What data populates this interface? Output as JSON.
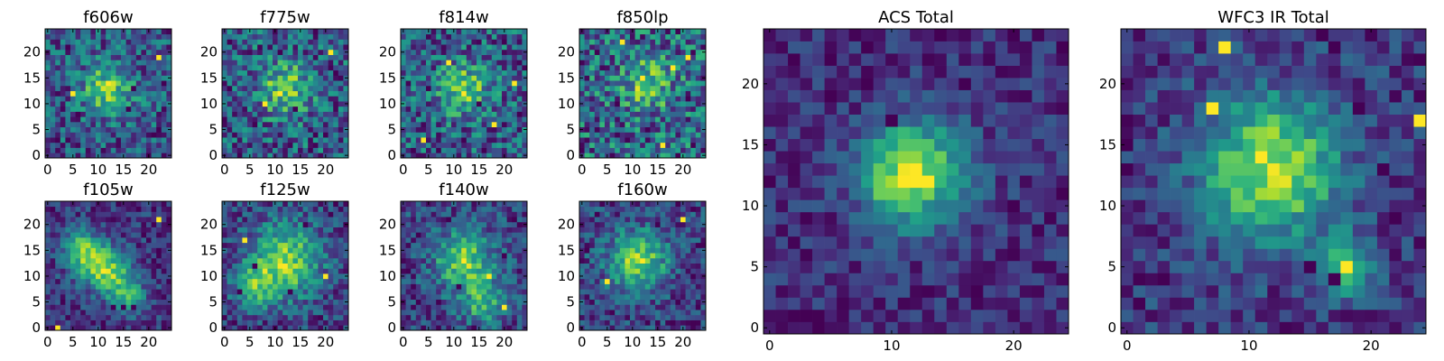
{
  "chart_data": [
    {
      "type": "heatmap",
      "title": "f606w",
      "grid_size": 25,
      "xticks": [
        0,
        5,
        10,
        15,
        20
      ],
      "yticks": [
        0,
        5,
        10,
        15,
        20
      ],
      "xlim": [
        0,
        24
      ],
      "ylim": [
        0,
        24
      ],
      "colormap": "viridis",
      "seed": 11,
      "noise": 0.85,
      "blobs": [
        [
          12,
          13,
          3.5,
          0.8
        ]
      ],
      "minima": [
        [
          4,
          21
        ],
        [
          17,
          13
        ],
        [
          22,
          5
        ],
        [
          2,
          3
        ],
        [
          20,
          0
        ],
        [
          16,
          9
        ],
        [
          6,
          8
        ],
        [
          23,
          14
        ]
      ],
      "maxima": [
        [
          22,
          19
        ],
        [
          5,
          12
        ]
      ]
    },
    {
      "type": "heatmap",
      "title": "f775w",
      "grid_size": 25,
      "xticks": [
        0,
        5,
        10,
        15,
        20
      ],
      "yticks": [
        0,
        5,
        10,
        15,
        20
      ],
      "xlim": [
        0,
        24
      ],
      "ylim": [
        0,
        24
      ],
      "colormap": "viridis",
      "seed": 23,
      "noise": 0.85,
      "blobs": [
        [
          12,
          13,
          3.5,
          0.7
        ]
      ],
      "minima": [
        [
          1,
          22
        ],
        [
          11,
          20
        ],
        [
          14,
          9
        ],
        [
          20,
          4
        ],
        [
          22,
          16
        ],
        [
          6,
          6
        ],
        [
          3,
          0
        ],
        [
          17,
          1
        ]
      ],
      "maxima": [
        [
          21,
          20
        ],
        [
          8,
          10
        ]
      ]
    },
    {
      "type": "heatmap",
      "title": "f814w",
      "grid_size": 25,
      "xticks": [
        0,
        5,
        10,
        15,
        20
      ],
      "yticks": [
        0,
        5,
        10,
        15,
        20
      ],
      "xlim": [
        0,
        24
      ],
      "ylim": [
        0,
        24
      ],
      "colormap": "viridis",
      "seed": 37,
      "noise": 0.9,
      "blobs": [
        [
          12,
          13,
          3.5,
          0.7
        ]
      ],
      "minima": [
        [
          2,
          1
        ],
        [
          9,
          18
        ],
        [
          15,
          10
        ],
        [
          20,
          22
        ],
        [
          23,
          8
        ],
        [
          5,
          13
        ],
        [
          12,
          3
        ]
      ],
      "maxima": [
        [
          9,
          18
        ],
        [
          18,
          6
        ],
        [
          22,
          14
        ],
        [
          4,
          3
        ]
      ]
    },
    {
      "type": "heatmap",
      "title": "f850lp",
      "grid_size": 25,
      "xticks": [
        0,
        5,
        10,
        15,
        20
      ],
      "yticks": [
        0,
        5,
        10,
        15,
        20
      ],
      "xlim": [
        0,
        24
      ],
      "ylim": [
        0,
        24
      ],
      "colormap": "viridis",
      "seed": 41,
      "noise": 0.9,
      "blobs": [
        [
          13,
          14,
          3.2,
          0.6
        ]
      ],
      "minima": [
        [
          3,
          20
        ],
        [
          13,
          5
        ],
        [
          18,
          17
        ],
        [
          22,
          2
        ],
        [
          7,
          10
        ],
        [
          21,
          11
        ],
        [
          0,
          1
        ]
      ],
      "maxima": [
        [
          18,
          17
        ],
        [
          8,
          22
        ],
        [
          21,
          19
        ],
        [
          16,
          2
        ]
      ]
    },
    {
      "type": "heatmap",
      "title": "f105w",
      "grid_size": 25,
      "xticks": [
        0,
        5,
        10,
        15,
        20
      ],
      "yticks": [
        0,
        5,
        10,
        15,
        20
      ],
      "xlim": [
        0,
        24
      ],
      "ylim": [
        0,
        24
      ],
      "colormap": "viridis",
      "seed": 53,
      "noise": 0.6,
      "blobs": [
        [
          9,
          13,
          3,
          0.9
        ],
        [
          13,
          10,
          3,
          0.8
        ],
        [
          6,
          16,
          2.5,
          0.6
        ],
        [
          16,
          6,
          2.5,
          0.6
        ]
      ],
      "minima": [
        [
          17,
          4
        ],
        [
          13,
          4
        ],
        [
          15,
          4
        ],
        [
          18,
          23
        ],
        [
          1,
          23
        ],
        [
          22,
          15
        ],
        [
          3,
          5
        ],
        [
          19,
          18
        ]
      ],
      "maxima": [
        [
          2,
          0
        ],
        [
          22,
          21
        ]
      ]
    },
    {
      "type": "heatmap",
      "title": "f125w",
      "grid_size": 25,
      "xticks": [
        0,
        5,
        10,
        15,
        20
      ],
      "yticks": [
        0,
        5,
        10,
        15,
        20
      ],
      "xlim": [
        0,
        24
      ],
      "ylim": [
        0,
        24
      ],
      "colormap": "viridis",
      "seed": 67,
      "noise": 0.6,
      "blobs": [
        [
          12,
          13,
          5,
          0.9
        ],
        [
          6,
          8,
          3,
          0.5
        ]
      ],
      "minima": [
        [
          3,
          7
        ],
        [
          13,
          7
        ],
        [
          16,
          20
        ],
        [
          19,
          2
        ],
        [
          6,
          12
        ],
        [
          21,
          22
        ],
        [
          10,
          0
        ]
      ],
      "maxima": [
        [
          4,
          17
        ],
        [
          20,
          10
        ]
      ]
    },
    {
      "type": "heatmap",
      "title": "f140w",
      "grid_size": 25,
      "xticks": [
        0,
        5,
        10,
        15,
        20
      ],
      "yticks": [
        0,
        5,
        10,
        15,
        20
      ],
      "xlim": [
        0,
        24
      ],
      "ylim": [
        0,
        24
      ],
      "colormap": "viridis",
      "seed": 79,
      "noise": 0.6,
      "blobs": [
        [
          12,
          13,
          4,
          0.8
        ],
        [
          16,
          5,
          3,
          0.6
        ]
      ],
      "minima": [
        [
          3,
          18
        ],
        [
          14,
          0
        ],
        [
          7,
          5
        ],
        [
          11,
          8
        ],
        [
          20,
          14
        ],
        [
          22,
          21
        ],
        [
          1,
          11
        ],
        [
          9,
          21
        ]
      ],
      "maxima": [
        [
          17,
          10
        ],
        [
          20,
          4
        ]
      ]
    },
    {
      "type": "heatmap",
      "title": "f160w",
      "grid_size": 25,
      "xticks": [
        0,
        5,
        10,
        15,
        20
      ],
      "yticks": [
        0,
        5,
        10,
        15,
        20
      ],
      "xlim": [
        0,
        24
      ],
      "ylim": [
        0,
        24
      ],
      "colormap": "viridis",
      "seed": 83,
      "noise": 0.6,
      "blobs": [
        [
          11,
          13,
          4,
          0.9
        ]
      ],
      "minima": [
        [
          19,
          5
        ],
        [
          6,
          3
        ],
        [
          15,
          20
        ],
        [
          1,
          15
        ],
        [
          22,
          10
        ],
        [
          13,
          1
        ],
        [
          3,
          22
        ]
      ],
      "maxima": [
        [
          20,
          21
        ],
        [
          5,
          9
        ]
      ]
    },
    {
      "type": "heatmap",
      "title": "ACS Total",
      "grid_size": 25,
      "xticks": [
        0,
        10,
        20
      ],
      "yticks": [
        0,
        5,
        10,
        15,
        20
      ],
      "xlim": [
        0,
        24
      ],
      "ylim": [
        0,
        24
      ],
      "colormap": "viridis",
      "seed": 97,
      "noise": 0.55,
      "blobs": [
        [
          12,
          13,
          3,
          1.3
        ],
        [
          10,
          11,
          2,
          0.4
        ]
      ],
      "minima": [
        [
          14,
          24
        ],
        [
          2,
          22
        ],
        [
          24,
          23
        ],
        [
          8,
          20
        ],
        [
          4,
          0
        ],
        [
          20,
          10
        ],
        [
          24,
          11
        ],
        [
          16,
          20
        ],
        [
          10,
          17
        ],
        [
          17,
          3
        ],
        [
          5,
          19
        ]
      ],
      "maxima": [
        [
          11,
          12
        ],
        [
          12,
          13
        ],
        [
          13,
          12
        ]
      ]
    },
    {
      "type": "heatmap",
      "title": "WFC3 IR Total",
      "grid_size": 25,
      "xticks": [
        0,
        10,
        20
      ],
      "yticks": [
        0,
        5,
        10,
        15,
        20
      ],
      "xlim": [
        0,
        24
      ],
      "ylim": [
        0,
        24
      ],
      "colormap": "viridis",
      "seed": 101,
      "noise": 0.55,
      "blobs": [
        [
          12,
          13,
          4,
          1.2
        ],
        [
          18,
          5,
          1.5,
          0.9
        ]
      ],
      "minima": [
        [
          16,
          24
        ],
        [
          17,
          23
        ],
        [
          19,
          18
        ],
        [
          21,
          13
        ],
        [
          0,
          13
        ],
        [
          15,
          5
        ],
        [
          0,
          15
        ],
        [
          22,
          9
        ],
        [
          3,
          4
        ],
        [
          17,
          4
        ]
      ],
      "maxima": [
        [
          8,
          23
        ],
        [
          7,
          18
        ],
        [
          24,
          17
        ],
        [
          18,
          5
        ]
      ]
    }
  ]
}
